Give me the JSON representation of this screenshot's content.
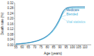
{
  "chart_data": {
    "type": "line",
    "x_label": "Age (years)",
    "y_label": "Death rate (%)",
    "x": [
      55,
      56,
      57,
      58,
      59,
      60,
      61,
      62,
      63,
      64,
      65,
      66,
      67,
      68,
      69,
      70,
      71,
      72,
      73,
      74,
      75,
      76,
      77,
      78,
      79,
      80,
      81,
      82,
      83,
      84,
      85,
      86,
      87,
      88,
      89,
      90,
      91,
      92,
      93,
      94,
      95,
      96,
      97,
      98,
      99,
      100,
      101,
      102,
      103,
      104,
      105,
      106,
      107,
      108,
      109,
      110
    ],
    "series": [
      {
        "name": "Medicare",
        "color": "#1a6fa8",
        "values": [
          0.006,
          0.0066,
          0.0073,
          0.008,
          0.0089,
          0.0099,
          0.0109,
          0.012,
          0.0133,
          0.0147,
          0.0162,
          0.0178,
          0.0196,
          0.0216,
          0.0238,
          0.0262,
          0.0288,
          0.0318,
          0.035,
          0.0386,
          0.0426,
          0.047,
          0.0519,
          0.0574,
          0.0636,
          0.0705,
          0.0783,
          0.087,
          0.0967,
          0.1076,
          0.1198,
          0.1333,
          0.1483,
          0.1647,
          0.1827,
          0.2022,
          0.2232,
          0.2456,
          0.262,
          0.272,
          0.28,
          0.284,
          0.286,
          0.287,
          0.2878,
          0.2882,
          0.2884,
          0.2885,
          0.2886,
          0.2886,
          0.2886,
          0.2886,
          0.2886,
          0.2886,
          0.2886,
          0.2886
        ]
      },
      {
        "name": "Blended",
        "color": "#3aaed8",
        "values": [
          0.0057,
          0.0063,
          0.0069,
          0.0076,
          0.0085,
          0.0094,
          0.0104,
          0.0114,
          0.0126,
          0.0139,
          0.0153,
          0.0168,
          0.0185,
          0.0204,
          0.0224,
          0.0246,
          0.0271,
          0.0299,
          0.0329,
          0.0363,
          0.0401,
          0.0443,
          0.0489,
          0.0541,
          0.0599,
          0.0664,
          0.0738,
          0.0821,
          0.0913,
          0.1016,
          0.1132,
          0.1261,
          0.1405,
          0.1564,
          0.174,
          0.1934,
          0.2144,
          0.237,
          0.255,
          0.265,
          0.273,
          0.276,
          0.277,
          0.2775,
          0.2778,
          0.278,
          0.2781,
          0.2782,
          0.2782,
          0.2782,
          0.2782,
          0.2782,
          0.2782,
          0.2782,
          0.2782,
          0.2782
        ]
      },
      {
        "name": "Vital statistics",
        "color": "#6ecae8",
        "values": [
          0.0055,
          0.006,
          0.0066,
          0.0073,
          0.0081,
          0.009,
          0.0099,
          0.0109,
          0.012,
          0.0132,
          0.0145,
          0.0159,
          0.0175,
          0.0192,
          0.0211,
          0.0232,
          0.0256,
          0.0282,
          0.0311,
          0.0343,
          0.0379,
          0.0418,
          0.0462,
          0.0511,
          0.0566,
          0.0628,
          0.0698,
          0.0777,
          0.0866,
          0.0966,
          0.1079,
          0.1205,
          0.1345,
          0.1502,
          0.1676,
          0.1869,
          0.2082,
          0.2315,
          0.25,
          0.26,
          0.27,
          0.278,
          0.282,
          0.284,
          0.2855,
          0.2865,
          0.287,
          0.2873,
          0.2875,
          0.2877,
          0.2878,
          0.2879,
          0.288,
          0.288,
          0.288,
          0.288
        ]
      }
    ],
    "xlim": [
      54,
      115
    ],
    "xticks": [
      55,
      60,
      65,
      70,
      75,
      80,
      85,
      90,
      95,
      100,
      105,
      110
    ],
    "ylim": [
      0,
      0.32
    ],
    "yticks": [
      {
        "value": 0,
        "label": "0.00"
      },
      0.04,
      0.08,
      0.12,
      0.16,
      {
        "value": 0.2,
        "label": "0.20"
      },
      0.24,
      0.28,
      0.32
    ],
    "grid": false
  }
}
